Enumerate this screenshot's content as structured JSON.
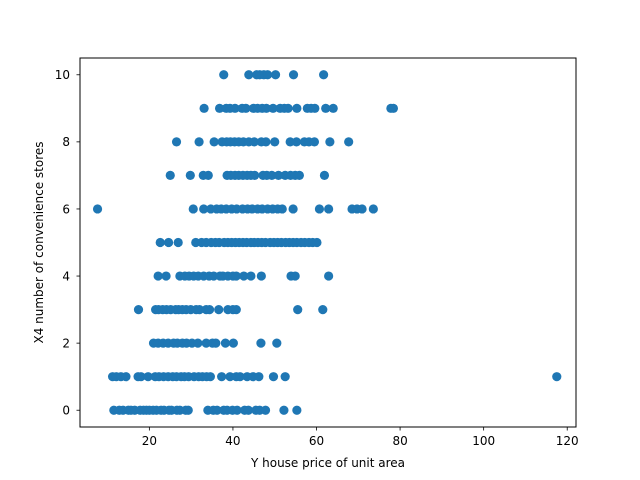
{
  "chart_data": {
    "type": "scatter",
    "title": "",
    "xlabel": "Y house price of unit area",
    "ylabel": "X4 number of convenience stores",
    "xlim": [
      3.4,
      122.1
    ],
    "ylim": [
      -0.5,
      10.5
    ],
    "xticks": [
      20,
      40,
      60,
      80,
      100,
      120
    ],
    "yticks": [
      0,
      2,
      4,
      6,
      8,
      10
    ],
    "xtick_labels": [
      "20",
      "40",
      "60",
      "80",
      "100",
      "120"
    ],
    "ytick_labels": [
      "0",
      "2",
      "4",
      "6",
      "8",
      "10"
    ],
    "grid": false,
    "legend": "none",
    "marker_color": "#1f77b4",
    "series": [
      {
        "points": [
          [
            11.5,
            0
          ],
          [
            12.8,
            0
          ],
          [
            13.7,
            0
          ],
          [
            15.0,
            0
          ],
          [
            15.6,
            0
          ],
          [
            16.5,
            0
          ],
          [
            17.8,
            0
          ],
          [
            18.6,
            0
          ],
          [
            19.3,
            0
          ],
          [
            20.0,
            0
          ],
          [
            20.9,
            0
          ],
          [
            21.7,
            0
          ],
          [
            22.8,
            0
          ],
          [
            23.5,
            0
          ],
          [
            24.7,
            0
          ],
          [
            25.3,
            0
          ],
          [
            26.6,
            0
          ],
          [
            27.3,
            0
          ],
          [
            28.7,
            0
          ],
          [
            29.3,
            0
          ],
          [
            34.0,
            0
          ],
          [
            35.3,
            0
          ],
          [
            36.2,
            0
          ],
          [
            37.8,
            0
          ],
          [
            38.6,
            0
          ],
          [
            39.9,
            0
          ],
          [
            41.0,
            0
          ],
          [
            42.8,
            0
          ],
          [
            43.7,
            0
          ],
          [
            45.5,
            0
          ],
          [
            46.4,
            0
          ],
          [
            47.8,
            0
          ],
          [
            52.2,
            0
          ],
          [
            55.3,
            0
          ],
          [
            11.2,
            1
          ],
          [
            12.1,
            1
          ],
          [
            13.2,
            1
          ],
          [
            14.4,
            1
          ],
          [
            17.3,
            1
          ],
          [
            18.0,
            1
          ],
          [
            19.7,
            1
          ],
          [
            21.4,
            1
          ],
          [
            22.3,
            1
          ],
          [
            23.4,
            1
          ],
          [
            24.5,
            1
          ],
          [
            25.6,
            1
          ],
          [
            26.5,
            1
          ],
          [
            27.6,
            1
          ],
          [
            28.4,
            1
          ],
          [
            29.4,
            1
          ],
          [
            30.7,
            1
          ],
          [
            31.8,
            1
          ],
          [
            32.7,
            1
          ],
          [
            33.7,
            1
          ],
          [
            34.6,
            1
          ],
          [
            37.3,
            1
          ],
          [
            39.3,
            1
          ],
          [
            40.8,
            1
          ],
          [
            41.7,
            1
          ],
          [
            43.4,
            1
          ],
          [
            44.8,
            1
          ],
          [
            46.2,
            1
          ],
          [
            49.7,
            1
          ],
          [
            52.5,
            1
          ],
          [
            117.5,
            1
          ],
          [
            21.0,
            2
          ],
          [
            22.1,
            2
          ],
          [
            23.3,
            2
          ],
          [
            24.5,
            2
          ],
          [
            25.8,
            2
          ],
          [
            26.7,
            2
          ],
          [
            27.9,
            2
          ],
          [
            28.9,
            2
          ],
          [
            30.2,
            2
          ],
          [
            31.6,
            2
          ],
          [
            33.6,
            2
          ],
          [
            35.1,
            2
          ],
          [
            35.9,
            2
          ],
          [
            38.2,
            2
          ],
          [
            40.1,
            2
          ],
          [
            46.7,
            2
          ],
          [
            50.5,
            2
          ],
          [
            17.4,
            3
          ],
          [
            21.5,
            3
          ],
          [
            22.2,
            3
          ],
          [
            23.2,
            3
          ],
          [
            24.1,
            3
          ],
          [
            25.1,
            3
          ],
          [
            26.3,
            3
          ],
          [
            27.0,
            3
          ],
          [
            27.9,
            3
          ],
          [
            28.8,
            3
          ],
          [
            29.9,
            3
          ],
          [
            31.2,
            3
          ],
          [
            32.0,
            3
          ],
          [
            33.6,
            3
          ],
          [
            34.4,
            3
          ],
          [
            36.6,
            3
          ],
          [
            38.8,
            3
          ],
          [
            40.0,
            3
          ],
          [
            40.8,
            3
          ],
          [
            55.5,
            3
          ],
          [
            61.5,
            3
          ],
          [
            22.1,
            4
          ],
          [
            24.0,
            4
          ],
          [
            27.3,
            4
          ],
          [
            28.5,
            4
          ],
          [
            29.5,
            4
          ],
          [
            30.6,
            4
          ],
          [
            31.7,
            4
          ],
          [
            33.0,
            4
          ],
          [
            34.3,
            4
          ],
          [
            35.4,
            4
          ],
          [
            36.9,
            4
          ],
          [
            37.6,
            4
          ],
          [
            38.8,
            4
          ],
          [
            40.0,
            4
          ],
          [
            40.8,
            4
          ],
          [
            42.6,
            4
          ],
          [
            44.3,
            4
          ],
          [
            46.8,
            4
          ],
          [
            53.9,
            4
          ],
          [
            54.9,
            4
          ],
          [
            62.9,
            4
          ],
          [
            22.6,
            5
          ],
          [
            24.6,
            5
          ],
          [
            26.9,
            5
          ],
          [
            31.1,
            5
          ],
          [
            32.5,
            5
          ],
          [
            33.6,
            5
          ],
          [
            34.8,
            5
          ],
          [
            35.8,
            5
          ],
          [
            36.7,
            5
          ],
          [
            37.9,
            5
          ],
          [
            38.8,
            5
          ],
          [
            39.7,
            5
          ],
          [
            40.6,
            5
          ],
          [
            41.5,
            5
          ],
          [
            42.4,
            5
          ],
          [
            43.3,
            5
          ],
          [
            44.3,
            5
          ],
          [
            45.1,
            5
          ],
          [
            46.0,
            5
          ],
          [
            46.9,
            5
          ],
          [
            47.8,
            5
          ],
          [
            48.9,
            5
          ],
          [
            49.8,
            5
          ],
          [
            50.7,
            5
          ],
          [
            51.6,
            5
          ],
          [
            52.6,
            5
          ],
          [
            53.5,
            5
          ],
          [
            54.4,
            5
          ],
          [
            55.3,
            5
          ],
          [
            56.3,
            5
          ],
          [
            57.2,
            5
          ],
          [
            58.2,
            5
          ],
          [
            59.1,
            5
          ],
          [
            60.1,
            5
          ],
          [
            7.6,
            6
          ],
          [
            30.5,
            6
          ],
          [
            33.0,
            6
          ],
          [
            34.7,
            6
          ],
          [
            36.1,
            6
          ],
          [
            37.2,
            6
          ],
          [
            38.4,
            6
          ],
          [
            39.7,
            6
          ],
          [
            40.9,
            6
          ],
          [
            42.3,
            6
          ],
          [
            43.5,
            6
          ],
          [
            44.6,
            6
          ],
          [
            45.9,
            6
          ],
          [
            47.0,
            6
          ],
          [
            48.3,
            6
          ],
          [
            49.5,
            6
          ],
          [
            50.7,
            6
          ],
          [
            51.8,
            6
          ],
          [
            54.4,
            6
          ],
          [
            60.7,
            6
          ],
          [
            62.9,
            6
          ],
          [
            68.5,
            6
          ],
          [
            69.7,
            6
          ],
          [
            70.9,
            6
          ],
          [
            73.6,
            6
          ],
          [
            25.0,
            7
          ],
          [
            29.8,
            7
          ],
          [
            32.9,
            7
          ],
          [
            34.1,
            7
          ],
          [
            38.6,
            7
          ],
          [
            39.5,
            7
          ],
          [
            40.5,
            7
          ],
          [
            41.4,
            7
          ],
          [
            42.4,
            7
          ],
          [
            43.4,
            7
          ],
          [
            44.3,
            7
          ],
          [
            45.2,
            7
          ],
          [
            47.2,
            7
          ],
          [
            48.1,
            7
          ],
          [
            49.3,
            7
          ],
          [
            50.9,
            7
          ],
          [
            52.5,
            7
          ],
          [
            53.8,
            7
          ],
          [
            54.9,
            7
          ],
          [
            55.9,
            7
          ],
          [
            61.9,
            7
          ],
          [
            26.5,
            8
          ],
          [
            31.9,
            8
          ],
          [
            35.5,
            8
          ],
          [
            37.4,
            8
          ],
          [
            38.5,
            8
          ],
          [
            39.4,
            8
          ],
          [
            40.4,
            8
          ],
          [
            41.4,
            8
          ],
          [
            42.5,
            8
          ],
          [
            43.8,
            8
          ],
          [
            45.1,
            8
          ],
          [
            46.8,
            8
          ],
          [
            47.9,
            8
          ],
          [
            50.0,
            8
          ],
          [
            53.7,
            8
          ],
          [
            55.2,
            8
          ],
          [
            57.1,
            8
          ],
          [
            58.2,
            8
          ],
          [
            59.5,
            8
          ],
          [
            63.2,
            8
          ],
          [
            67.7,
            8
          ],
          [
            33.1,
            9
          ],
          [
            36.8,
            9
          ],
          [
            38.4,
            9
          ],
          [
            39.3,
            9
          ],
          [
            40.5,
            9
          ],
          [
            42.2,
            9
          ],
          [
            43.1,
            9
          ],
          [
            44.9,
            9
          ],
          [
            45.9,
            9
          ],
          [
            47.0,
            9
          ],
          [
            48.0,
            9
          ],
          [
            49.6,
            9
          ],
          [
            51.3,
            9
          ],
          [
            52.3,
            9
          ],
          [
            53.2,
            9
          ],
          [
            55.3,
            9
          ],
          [
            57.8,
            9
          ],
          [
            58.7,
            9
          ],
          [
            59.6,
            9
          ],
          [
            62.2,
            9
          ],
          [
            64.0,
            9
          ],
          [
            77.8,
            9
          ],
          [
            78.4,
            9
          ],
          [
            37.8,
            10
          ],
          [
            43.8,
            10
          ],
          [
            45.7,
            10
          ],
          [
            46.4,
            10
          ],
          [
            47.4,
            10
          ],
          [
            48.3,
            10
          ],
          [
            50.2,
            10
          ],
          [
            54.5,
            10
          ],
          [
            61.7,
            10
          ]
        ]
      }
    ]
  }
}
